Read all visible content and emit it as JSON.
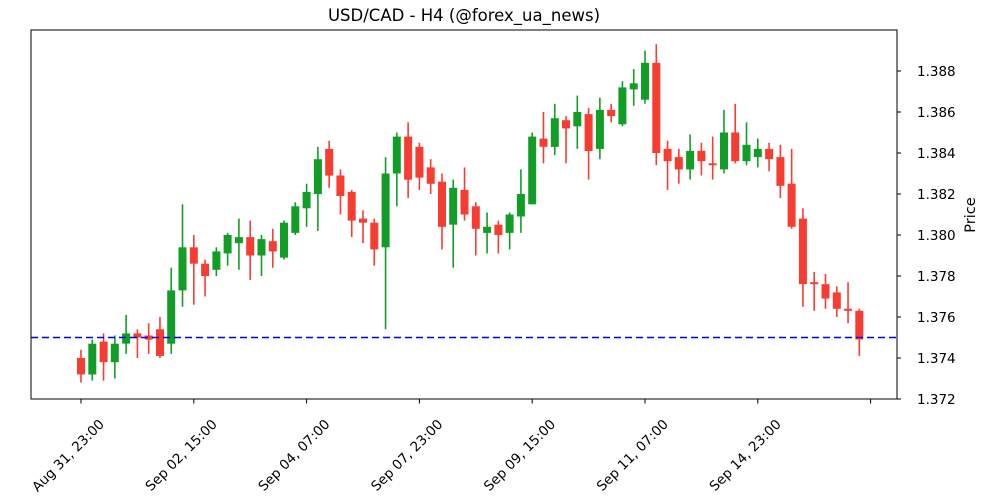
{
  "figure": {
    "title": "USD/CAD - H4 (@forex_ua_news)",
    "ylabel": "Price"
  },
  "chart_data": {
    "type": "candlestick",
    "title": "USD/CAD - H4 (@forex_ua_news)",
    "ylabel": "Price",
    "ylim": [
      1.372,
      1.39
    ],
    "y_ticks": [
      1.372,
      1.374,
      1.376,
      1.378,
      1.38,
      1.382,
      1.384,
      1.386,
      1.388
    ],
    "y_tick_decimals": 3,
    "grid": false,
    "x_ticks": [
      {
        "index": 0,
        "label": "Aug 31, 23:00"
      },
      {
        "index": 10,
        "label": "Sep 02, 15:00"
      },
      {
        "index": 20,
        "label": "Sep 04, 07:00"
      },
      {
        "index": 30,
        "label": "Sep 07, 23:00"
      },
      {
        "index": 40,
        "label": "Sep 09, 15:00"
      },
      {
        "index": 50,
        "label": "Sep 11, 07:00"
      },
      {
        "index": 60,
        "label": "Sep 14, 23:00"
      },
      {
        "index": 70,
        "label": ""
      }
    ],
    "hline": {
      "price": 1.375,
      "color": "#0000ee",
      "style": "dashed"
    },
    "colors": {
      "up": "#129e26",
      "down": "#f73c32",
      "axis": "#000000"
    },
    "candles_format": [
      "open",
      "high",
      "low",
      "close"
    ],
    "candles": [
      [
        1.374,
        1.3744,
        1.3728,
        1.3732
      ],
      [
        1.3732,
        1.3749,
        1.3729,
        1.3747
      ],
      [
        1.3748,
        1.3752,
        1.3729,
        1.3738
      ],
      [
        1.3738,
        1.3751,
        1.373,
        1.3747
      ],
      [
        1.3747,
        1.3761,
        1.3742,
        1.3752
      ],
      [
        1.3752,
        1.3754,
        1.374,
        1.375
      ],
      [
        1.3751,
        1.3757,
        1.3742,
        1.3749
      ],
      [
        1.3754,
        1.376,
        1.374,
        1.3741
      ],
      [
        1.3747,
        1.3784,
        1.3742,
        1.3773
      ],
      [
        1.3773,
        1.3815,
        1.3765,
        1.3794
      ],
      [
        1.3794,
        1.38,
        1.3766,
        1.3786
      ],
      [
        1.3786,
        1.3788,
        1.377,
        1.378
      ],
      [
        1.3783,
        1.3794,
        1.378,
        1.3792
      ],
      [
        1.3791,
        1.3801,
        1.3785,
        1.38
      ],
      [
        1.3796,
        1.3808,
        1.3783,
        1.3799
      ],
      [
        1.3799,
        1.3807,
        1.3778,
        1.379
      ],
      [
        1.379,
        1.38,
        1.378,
        1.3798
      ],
      [
        1.3797,
        1.3803,
        1.3784,
        1.3792
      ],
      [
        1.3789,
        1.3807,
        1.3788,
        1.3806
      ],
      [
        1.3801,
        1.3816,
        1.38,
        1.3814
      ],
      [
        1.3813,
        1.3825,
        1.3804,
        1.3821
      ],
      [
        1.382,
        1.3843,
        1.3802,
        1.3837
      ],
      [
        1.3842,
        1.3846,
        1.3823,
        1.3829
      ],
      [
        1.3829,
        1.3832,
        1.381,
        1.3819
      ],
      [
        1.3821,
        1.3822,
        1.3799,
        1.3807
      ],
      [
        1.3808,
        1.3812,
        1.3796,
        1.3806
      ],
      [
        1.3806,
        1.3808,
        1.3785,
        1.3793
      ],
      [
        1.3794,
        1.3838,
        1.3754,
        1.383
      ],
      [
        1.383,
        1.385,
        1.3814,
        1.3848
      ],
      [
        1.3848,
        1.3855,
        1.3818,
        1.3827
      ],
      [
        1.3843,
        1.3845,
        1.3822,
        1.3828
      ],
      [
        1.3833,
        1.3837,
        1.382,
        1.3825
      ],
      [
        1.3826,
        1.383,
        1.3793,
        1.3804
      ],
      [
        1.3805,
        1.3827,
        1.3784,
        1.3823
      ],
      [
        1.3822,
        1.3833,
        1.3807,
        1.381
      ],
      [
        1.3814,
        1.3816,
        1.379,
        1.3803
      ],
      [
        1.3801,
        1.3811,
        1.3791,
        1.3804
      ],
      [
        1.3805,
        1.3807,
        1.3791,
        1.38
      ],
      [
        1.3801,
        1.3811,
        1.3793,
        1.381
      ],
      [
        1.3809,
        1.3832,
        1.3801,
        1.382
      ],
      [
        1.3815,
        1.385,
        1.3815,
        1.3848
      ],
      [
        1.3847,
        1.386,
        1.3835,
        1.3843
      ],
      [
        1.3843,
        1.3864,
        1.3839,
        1.3857
      ],
      [
        1.3856,
        1.3858,
        1.3835,
        1.3852
      ],
      [
        1.3853,
        1.3868,
        1.3842,
        1.386
      ],
      [
        1.3859,
        1.3862,
        1.3827,
        1.3841
      ],
      [
        1.3842,
        1.3867,
        1.3837,
        1.3861
      ],
      [
        1.3861,
        1.3864,
        1.3855,
        1.3858
      ],
      [
        1.3854,
        1.3875,
        1.3853,
        1.3872
      ],
      [
        1.3871,
        1.3881,
        1.3863,
        1.3874
      ],
      [
        1.3866,
        1.389,
        1.3864,
        1.3884
      ],
      [
        1.3884,
        1.3893,
        1.3834,
        1.384
      ],
      [
        1.3842,
        1.3846,
        1.3822,
        1.3836
      ],
      [
        1.3838,
        1.3842,
        1.3825,
        1.3832
      ],
      [
        1.3832,
        1.3849,
        1.3827,
        1.3841
      ],
      [
        1.3841,
        1.3845,
        1.3829,
        1.3836
      ],
      [
        1.3835,
        1.3848,
        1.3827,
        1.3834
      ],
      [
        1.3832,
        1.3861,
        1.383,
        1.385
      ],
      [
        1.385,
        1.3864,
        1.3835,
        1.3836
      ],
      [
        1.3836,
        1.3855,
        1.3834,
        1.3844
      ],
      [
        1.3838,
        1.3847,
        1.3833,
        1.3842
      ],
      [
        1.3842,
        1.3845,
        1.3831,
        1.3837
      ],
      [
        1.3838,
        1.3844,
        1.3818,
        1.3824
      ],
      [
        1.3825,
        1.3842,
        1.3803,
        1.3804
      ],
      [
        1.3808,
        1.3813,
        1.3765,
        1.3776
      ],
      [
        1.3777,
        1.3782,
        1.3763,
        1.3776
      ],
      [
        1.3776,
        1.3781,
        1.3764,
        1.3769
      ],
      [
        1.3772,
        1.3775,
        1.376,
        1.3764
      ],
      [
        1.3764,
        1.3777,
        1.3757,
        1.3763
      ],
      [
        1.3763,
        1.3764,
        1.3741,
        1.3749
      ]
    ]
  }
}
